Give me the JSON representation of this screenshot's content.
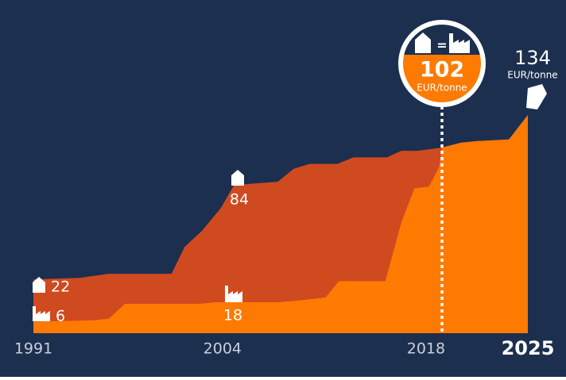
{
  "chart_data": {
    "type": "area",
    "background": "#1c2f4f",
    "xlim": [
      1991,
      2025
    ],
    "ylim": [
      0,
      134
    ],
    "xticks": [
      1991,
      2004,
      2018,
      2025
    ],
    "series": [
      {
        "color": "#d04a1f",
        "x": [
          1991,
          1994.2,
          1996.2,
          2000.5,
          2001.4,
          2002.6,
          2003.9,
          2004.8,
          2007.8,
          2008.9,
          2010.0,
          2011.9,
          2013.0,
          2015.3,
          2016.3,
          2017.4,
          2019.1,
          2020.4,
          2021.5,
          2023.7,
          2025
        ],
        "values": [
          33,
          34,
          36.5,
          36.5,
          53,
          63,
          77,
          91,
          93,
          101,
          104,
          104,
          108,
          108,
          112,
          112,
          114,
          117,
          118,
          119,
          134
        ]
      },
      {
        "color": "#ff7a00",
        "x": [
          1991,
          1995.3,
          1996.2,
          1997.3,
          2002.4,
          2003.5,
          2007.8,
          2009.2,
          2011.1,
          2012.0,
          2015.2,
          2016.3,
          2017.2,
          2018.2,
          2018.9,
          2019.1,
          2020.4,
          2021.5,
          2023.7,
          2025
        ],
        "values": [
          7,
          8,
          9,
          18,
          18,
          19,
          19,
          20,
          22,
          32,
          32,
          68,
          89,
          90,
          102,
          114,
          117,
          118,
          119,
          134
        ]
      }
    ],
    "labels": [
      22,
      6,
      84,
      18
    ],
    "equals": "=",
    "current": {
      "value": 102,
      "unit": "EUR/tonne"
    },
    "final": {
      "value": 134,
      "unit": "EUR/tonne"
    }
  }
}
